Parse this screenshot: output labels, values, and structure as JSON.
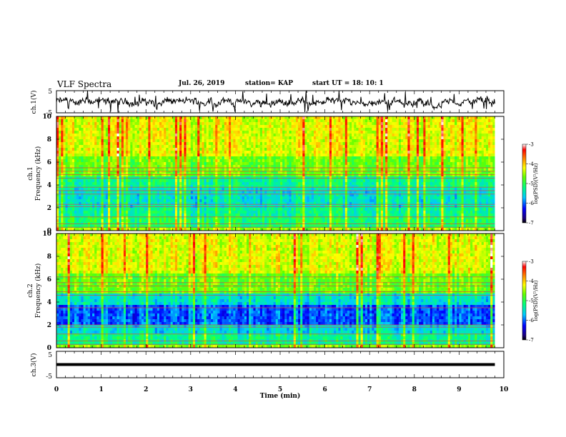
{
  "header": {
    "title": "VLF Spectra",
    "date": "Jul. 26, 2019",
    "station": "station= KAP",
    "start": "start UT = 18: 10: 1"
  },
  "chart_data": [
    {
      "type": "line",
      "panel": "ch1-waveform",
      "ylabel": "ch.1(V)",
      "ylim": [
        -5,
        5
      ],
      "yticks": [
        "5",
        "-5"
      ],
      "xlim": [
        0,
        10
      ],
      "note": "noisy waveform mostly between -3 and 3 V"
    },
    {
      "type": "heatmap",
      "panel": "ch1-spectrogram",
      "ylabel_line1": "ch.1",
      "ylabel_line2": "Frequency (kHz)",
      "ylim": [
        0,
        10
      ],
      "yticks": [
        "0",
        "2",
        "4",
        "6",
        "8",
        "10"
      ],
      "xlim": [
        0,
        9.8
      ],
      "colorbar": {
        "label": "log(PSD)(V²/Hz)",
        "range": [
          -7,
          -3
        ],
        "ticks": [
          "-3",
          "-4",
          "-5",
          "-6",
          "-7"
        ]
      },
      "hum_lines_khz": [
        0.3,
        0.6,
        1.2,
        2.1,
        2.3,
        3.2,
        3.5,
        3.8,
        4.6,
        4.9,
        5.2,
        5.5
      ]
    },
    {
      "type": "heatmap",
      "panel": "ch2-spectrogram",
      "ylabel_line1": "ch.2",
      "ylabel_line2": "Frequency (kHz)",
      "ylim": [
        0,
        10
      ],
      "yticks": [
        "0",
        "2",
        "4",
        "6",
        "8",
        "10"
      ],
      "xlim": [
        0,
        9.8
      ],
      "colorbar": {
        "label": "log(PSD)(V²/Hz)",
        "range": [
          -7,
          -3
        ],
        "ticks": [
          "-3",
          "-4",
          "-5",
          "-6",
          "-7"
        ]
      },
      "hum_lines_khz": [
        0.3,
        0.6,
        1.2,
        1.8,
        2.0,
        3.5,
        4.6,
        4.9,
        5.4,
        5.7,
        6.2
      ]
    },
    {
      "type": "line",
      "panel": "ch3-waveform",
      "ylabel": "ch.3(V)",
      "ylim": [
        -5,
        5
      ],
      "yticks": [
        "5",
        "-5"
      ],
      "xlim": [
        0,
        10
      ],
      "xlabel": "Time (min)",
      "xticks": [
        "0",
        "1",
        "2",
        "3",
        "4",
        "5",
        "6",
        "7",
        "8",
        "9",
        "10"
      ],
      "constant_value_v": 0
    }
  ]
}
